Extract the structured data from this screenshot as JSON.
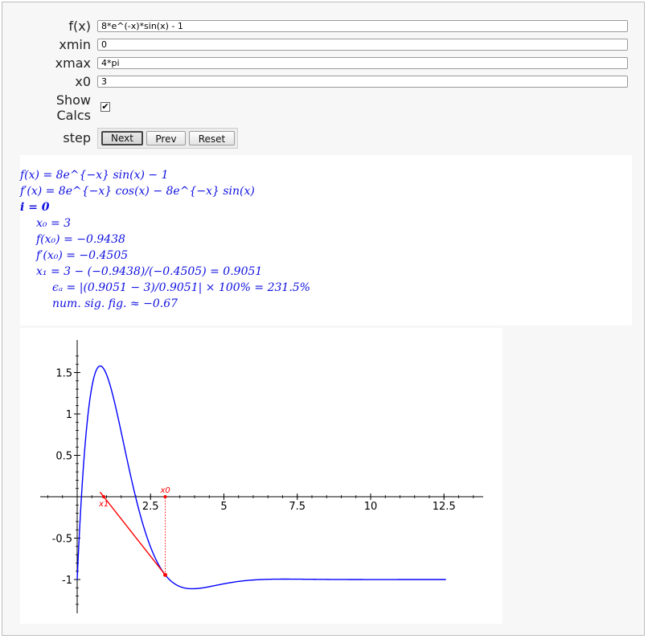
{
  "form": {
    "fx_label": "f(x)",
    "fx_value": "8*e^(-x)*sin(x) - 1",
    "xmin_label": "xmin",
    "xmin_value": "0",
    "xmax_label": "xmax",
    "xmax_value": "4*pi",
    "x0_label": "x0",
    "x0_value": "3",
    "show_calcs_label_1": "Show",
    "show_calcs_label_2": "Calcs",
    "show_calcs_checked": true,
    "step_label": "step",
    "buttons": {
      "next": "Next",
      "prev": "Prev",
      "reset": "Reset"
    },
    "active_button": "next"
  },
  "calcs": {
    "line1": "f(x) = 8e^{−x} sin(x) − 1",
    "line2": "f′(x) = 8e^{−x} cos(x) − 8e^{−x} sin(x)",
    "line3": "i = 0",
    "line4": "x₀ = 3",
    "line5": "f(x₀) = −0.9438",
    "line6": "f′(x₀) = −0.4505",
    "line7": "x₁ = 3 − (−0.9438)/(−0.4505) = 0.9051",
    "line8": "ϵₐ = |(0.9051 − 3)/0.9051| × 100% = 231.5%",
    "line9": "num. sig. fig. ≈ −0.67"
  },
  "chart_data": {
    "type": "line",
    "xlim": [
      0,
      12.566
    ],
    "ylim": [
      -1.05,
      1.6
    ],
    "xticks": [
      "2.5",
      "5",
      "7.5",
      "10",
      "12.5"
    ],
    "yticks": [
      "1.5",
      "1",
      "0.5",
      "-0.5",
      "-1"
    ],
    "function": "8*e^(-x)*sin(x) - 1",
    "x0": 3,
    "f_x0": -0.9438,
    "x1": 0.9051,
    "point_labels": [
      "x0",
      "x1"
    ],
    "colors": {
      "curve": "#0000ff",
      "tangent": "#ff0000",
      "axes": "#000000"
    }
  }
}
